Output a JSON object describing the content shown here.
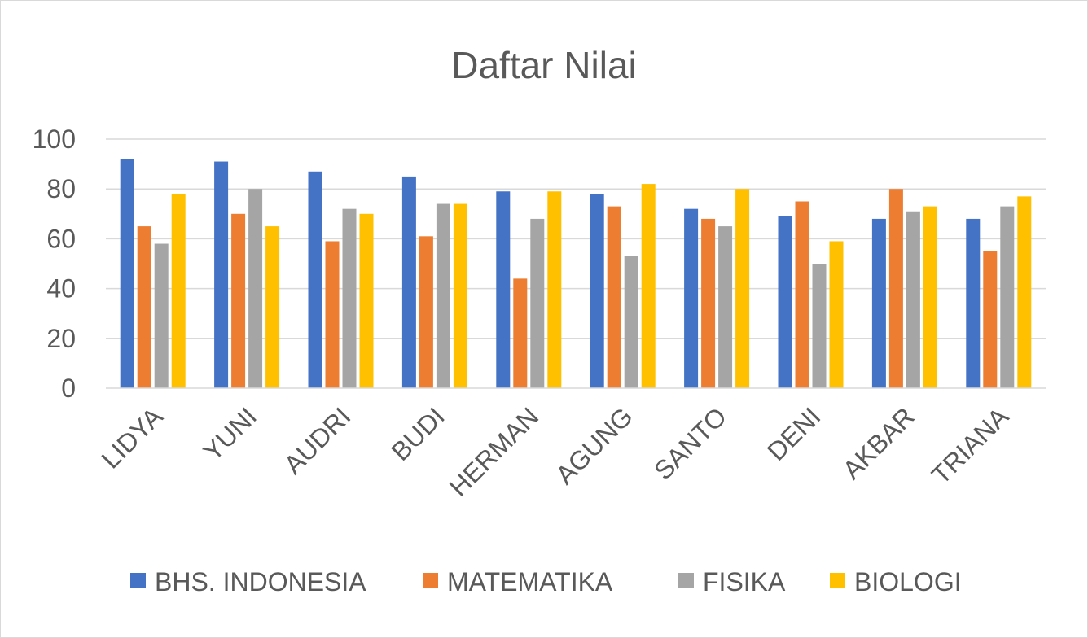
{
  "chart_data": {
    "type": "bar",
    "title": "Daftar Nilai",
    "xlabel": "",
    "ylabel": "",
    "ylim": [
      0,
      100
    ],
    "yticks": [
      0,
      20,
      40,
      60,
      80,
      100
    ],
    "grid": true,
    "legend_position": "bottom",
    "categories": [
      "LIDYA",
      "YUNI",
      "AUDRI",
      "BUDI",
      "HERMAN",
      "AGUNG",
      "SANTO",
      "DENI",
      "AKBAR",
      "TRIANA"
    ],
    "series": [
      {
        "name": "BHS. INDONESIA",
        "color": "#4472c4",
        "values": [
          92,
          91,
          87,
          85,
          79,
          78,
          72,
          69,
          68,
          68
        ]
      },
      {
        "name": "MATEMATIKA",
        "color": "#ed7d31",
        "values": [
          65,
          70,
          59,
          61,
          44,
          73,
          68,
          75,
          80,
          55
        ]
      },
      {
        "name": "FISIKA",
        "color": "#a5a5a5",
        "values": [
          58,
          80,
          72,
          74,
          68,
          53,
          65,
          50,
          71,
          73
        ]
      },
      {
        "name": "BIOLOGI",
        "color": "#ffc000",
        "values": [
          78,
          65,
          70,
          74,
          79,
          82,
          80,
          59,
          73,
          77
        ]
      }
    ]
  }
}
